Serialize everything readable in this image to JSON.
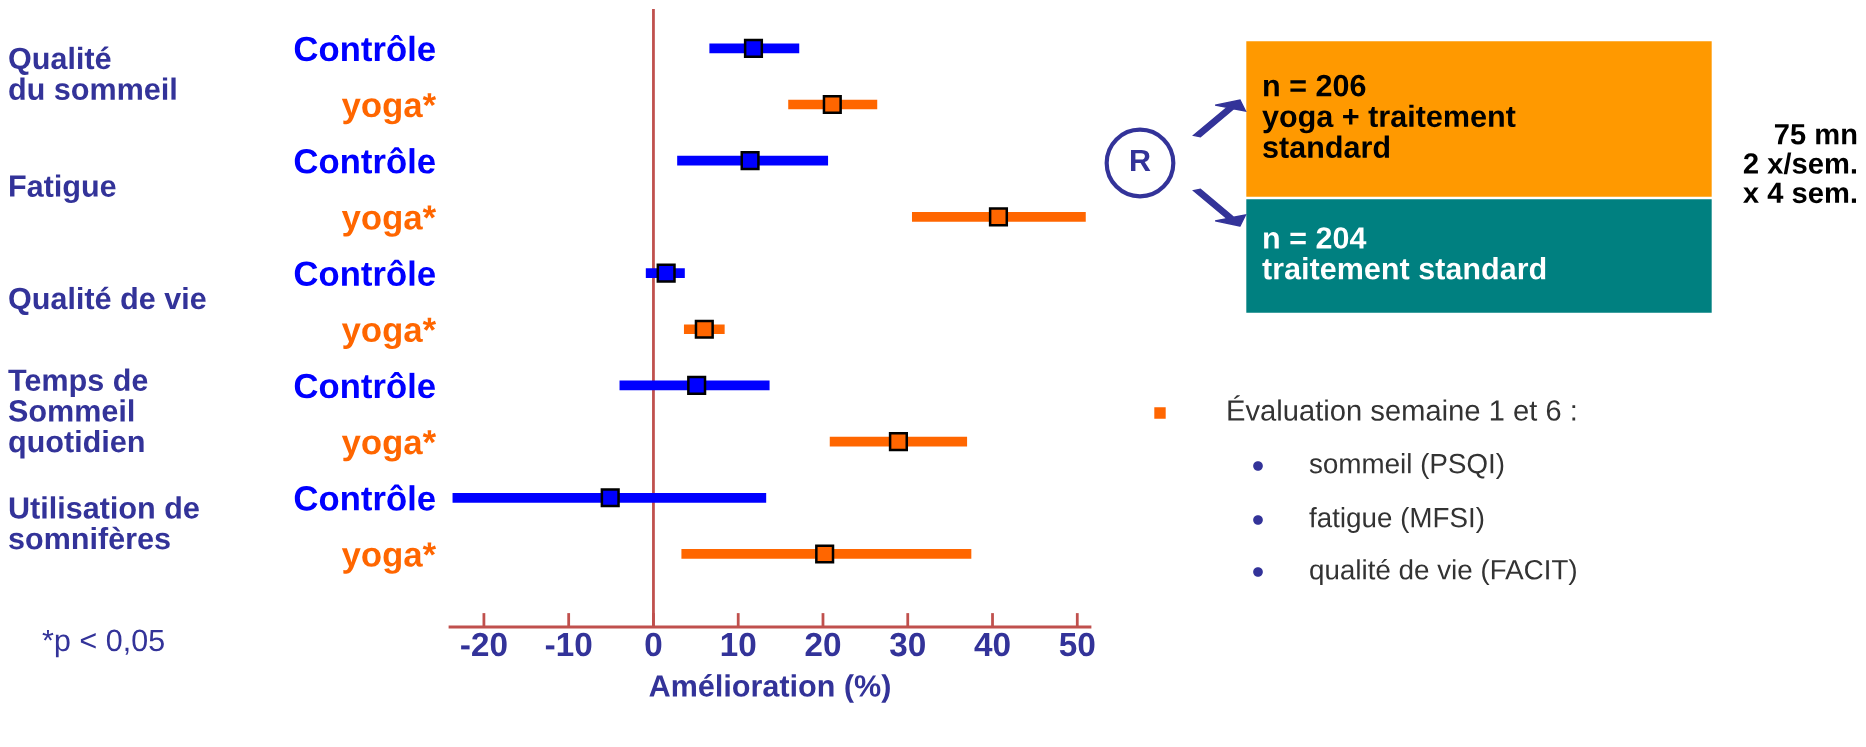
{
  "chart_data": {
    "type": "scatter",
    "orientation": "horizontal",
    "xlabel": "Amélioration (%)",
    "categories": [
      "Contrôle",
      "yoga*",
      "Contrôle",
      "yoga*",
      "Contrôle",
      "yoga*",
      "Contrôle",
      "yoga*",
      "Contrôle",
      "yoga*"
    ],
    "values": [
      11.8,
      21.1,
      11.4,
      40.7,
      1.5,
      6.0,
      5.1,
      28.9,
      -5.1,
      20.2
    ],
    "errors": [
      [
        6.6,
        17.2
      ],
      [
        15.9,
        26.4
      ],
      [
        2.8,
        20.6
      ],
      [
        30.5,
        51.0
      ],
      [
        -0.9,
        3.7
      ],
      [
        3.6,
        8.4
      ],
      [
        -4.0,
        13.7
      ],
      [
        20.8,
        37.0
      ],
      [
        -23.7,
        13.3
      ],
      [
        3.3,
        37.5
      ]
    ],
    "colors": [
      "#0000ff",
      "#ff6600",
      "#0000ff",
      "#ff6600",
      "#0000ff",
      "#ff6600",
      "#0000ff",
      "#ff6600",
      "#0000ff",
      "#ff6600"
    ],
    "marker": "square",
    "xlim": [
      -24,
      51.5
    ],
    "xticks": [
      -20,
      -10,
      0,
      10,
      20,
      30,
      40,
      50
    ],
    "ref_lines": [
      {
        "axis": "x",
        "value": 0,
        "color": "#c0504d"
      }
    ],
    "grid": false,
    "legend": false,
    "annotations": [
      "Qualité\ndu sommeil",
      "Fatigue",
      "Qualité de vie",
      "Temps de\nSommeil\nquotidien",
      "Utilisation de\nsomnifères",
      "*p < 0,05",
      "n = 206\nyoga + traitement\nstandard",
      "n = 204\ntraitement standard",
      "R",
      "75 mn\n2 x/sem.\nx 4 sem.",
      "Évaluation semaine 1 et 6 :",
      "sommeil (PSQI)",
      "fatigue (MFSI)",
      "qualité de vie (FACIT)"
    ]
  }
}
